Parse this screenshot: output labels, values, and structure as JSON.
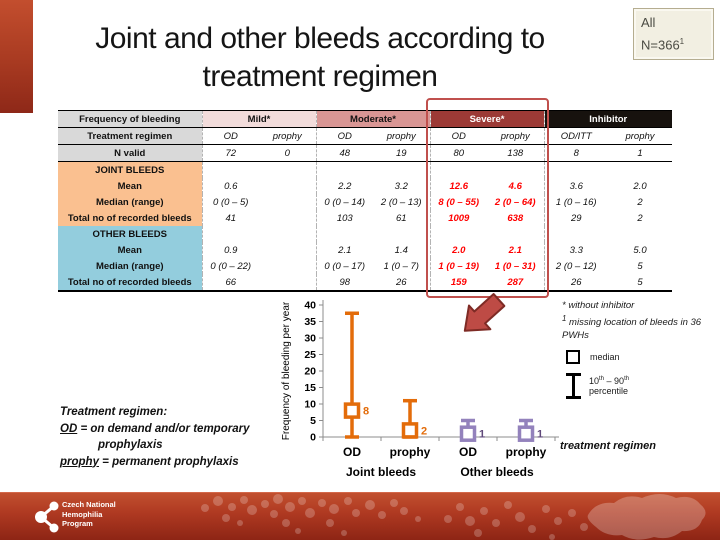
{
  "slide": {
    "title_line1": "Joint and other bleeds according to",
    "title_line2": "treatment regimen"
  },
  "badge": {
    "line1": "All",
    "n_text": "N=366",
    "n_sup": "1"
  },
  "table": {
    "header": {
      "row_label": "Frequency of bleeding",
      "groups": [
        {
          "label": "Mild*"
        },
        {
          "label": "Moderate*"
        },
        {
          "label": "Severe*"
        },
        {
          "label": "Inhibitor"
        }
      ]
    },
    "regimen_row": {
      "label": "Treatment regimen",
      "cells": [
        "OD",
        "prophy",
        "OD",
        "prophy",
        "OD",
        "prophy",
        "OD/ITT",
        "prophy"
      ]
    },
    "n_valid_row": {
      "label": "N valid",
      "cells": [
        "72",
        "0",
        "48",
        "19",
        "80",
        "138",
        "8",
        "1"
      ]
    },
    "sections": [
      {
        "title": "JOINT BLEEDS",
        "rows": [
          {
            "label": "Mean",
            "cells": [
              "0.6",
              "",
              "2.2",
              "3.2",
              "12.6",
              "4.6",
              "3.6",
              "2.0"
            ]
          },
          {
            "label": "Median (range)",
            "cells": [
              "0 (0 – 5)",
              "",
              "0 (0 – 14)",
              "2 (0 – 13)",
              "8 (0 – 55)",
              "2 (0 – 64)",
              "1 (0 – 16)",
              "2"
            ]
          },
          {
            "label": "Total no of recorded bleeds",
            "cells": [
              "41",
              "",
              "103",
              "61",
              "1009",
              "638",
              "29",
              "2"
            ]
          }
        ]
      },
      {
        "title": "OTHER BLEEDS",
        "rows": [
          {
            "label": "Mean",
            "cells": [
              "0.9",
              "",
              "2.1",
              "1.4",
              "2.0",
              "2.1",
              "3.3",
              "5.0"
            ]
          },
          {
            "label": "Median (range)",
            "cells": [
              "0 (0 – 22)",
              "",
              "0 (0 – 17)",
              "1 (0 – 7)",
              "1 (0 – 19)",
              "1 (0 – 31)",
              "2 (0 – 12)",
              "5"
            ]
          },
          {
            "label": "Total no of recorded bleeds",
            "cells": [
              "66",
              "",
              "98",
              "26",
              "159",
              "287",
              "26",
              "5"
            ]
          }
        ]
      }
    ]
  },
  "chart_data": {
    "type": "scatter",
    "title": "",
    "ylabel": "Frequency of bleeding per year",
    "xlabel": "treatment regimen",
    "ylim": [
      0,
      40
    ],
    "yticks": [
      0,
      5,
      10,
      15,
      20,
      25,
      30,
      35,
      40
    ],
    "grid": false,
    "legend_position": "right",
    "categories": [
      "OD",
      "prophy",
      "OD",
      "prophy"
    ],
    "groups": [
      {
        "label": "Joint bleeds",
        "span": [
          0,
          1
        ]
      },
      {
        "label": "Other bleeds",
        "span": [
          2,
          3
        ]
      }
    ],
    "points": [
      {
        "group": "Joint bleeds",
        "regimen": "OD",
        "median": 8,
        "p10": 0,
        "p90": 37.5,
        "label": "8",
        "color": "#e36c0a",
        "label_color": "#e36c0a"
      },
      {
        "group": "Joint bleeds",
        "regimen": "prophy",
        "median": 2,
        "p10": 0,
        "p90": 11,
        "label": "2",
        "color": "#e36c0a",
        "label_color": "#e36c0a"
      },
      {
        "group": "Other bleeds",
        "regimen": "OD",
        "median": 1,
        "p10": 0,
        "p90": 5,
        "label": "1",
        "color": "#9382bc",
        "label_color": "#5f497a"
      },
      {
        "group": "Other bleeds",
        "regimen": "prophy",
        "median": 1,
        "p10": 0,
        "p90": 5,
        "label": "1",
        "color": "#9382bc",
        "label_color": "#5f497a"
      }
    ],
    "legend": [
      {
        "marker": "square",
        "label": "median"
      },
      {
        "marker": "ibeam",
        "label": "10th – 90th percentile"
      }
    ]
  },
  "notes": {
    "star": "* without inhibitor",
    "sup1": "1",
    "sup1_text": " missing location of bleeds in 36 PWHs"
  },
  "legend_text": {
    "median": "median",
    "p_a": "10",
    "p_sup_a": "th",
    "p_b": " – 90",
    "p_sup_b": "th",
    "p_line2": "percentile"
  },
  "footnote": {
    "title": "Treatment regimen:",
    "od_term": "OD",
    "od_def": " = on demand and/or temporary",
    "od_def2": "prophylaxis",
    "prophy_term": "prophy",
    "prophy_def": " = permanent prophylaxis"
  },
  "footer": {
    "org_line1": "Czech National",
    "org_line2": "Hemophilia",
    "org_line3": "Program"
  },
  "colors": {
    "accent_bar": "#a83a21",
    "mild_header": "#f2dcdb",
    "moderate_header": "#d99694",
    "severe_header": "#9c3a36",
    "inhibitor_header": "#17120e",
    "label_gray": "#d9d9d9",
    "joint_bg": "#fac090",
    "other_bg": "#93cddd",
    "highlight_text": "#ff0000",
    "highlight_outline": "#c0504d",
    "series_joint": "#e36c0a",
    "series_other": "#9382bc"
  }
}
